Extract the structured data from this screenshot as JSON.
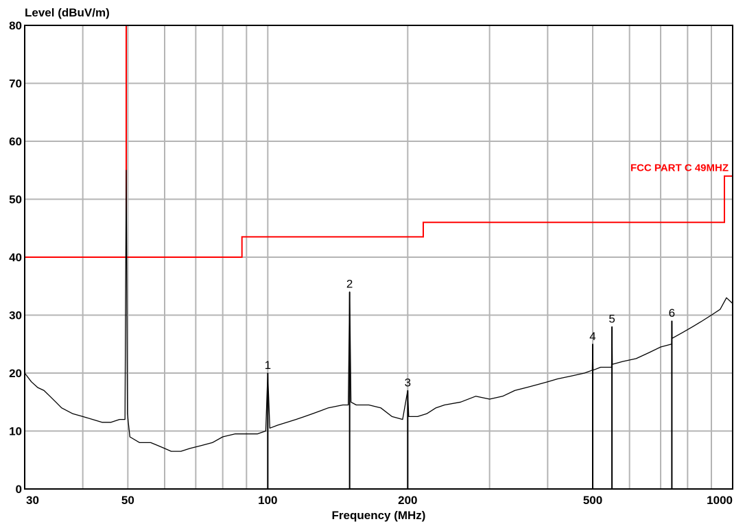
{
  "colors": {
    "background": "#ffffff",
    "grid": "#b4b4b4",
    "trace": "#000000",
    "limit": "#ff0000",
    "frame": "#000000"
  },
  "chart_data": {
    "type": "line",
    "title": "",
    "xlabel": "Frequency (MHz)",
    "ylabel": "Level (dBuV/m)",
    "x_scale": "log",
    "xlim": [
      30,
      1000
    ],
    "ylim": [
      0,
      80
    ],
    "grid": true,
    "x_tick_labels": [
      30,
      50,
      100,
      200,
      500,
      1000
    ],
    "x_grid": [
      30,
      40,
      50,
      60,
      70,
      80,
      90,
      100,
      200,
      300,
      400,
      500,
      600,
      700,
      800,
      900,
      1000
    ],
    "y_ticks": [
      0,
      10,
      20,
      30,
      40,
      50,
      60,
      70,
      80
    ],
    "limit_line": {
      "name": "FCC PART C 49MHZ",
      "points": [
        [
          30,
          40
        ],
        [
          49.6,
          40
        ],
        [
          49.6,
          80
        ],
        [
          49.6,
          40
        ],
        [
          88,
          40
        ],
        [
          88,
          43.5
        ],
        [
          216,
          43.5
        ],
        [
          216,
          46
        ],
        [
          960,
          46
        ],
        [
          960,
          54
        ],
        [
          1000,
          54
        ]
      ]
    },
    "series": [
      {
        "values": [
          [
            30,
            20
          ],
          [
            31,
            18.5
          ],
          [
            32,
            17.5
          ],
          [
            33,
            17
          ],
          [
            34,
            16
          ],
          [
            35,
            15
          ],
          [
            36,
            14
          ],
          [
            38,
            13
          ],
          [
            40,
            12.5
          ],
          [
            42,
            12
          ],
          [
            44,
            11.5
          ],
          [
            46,
            11.5
          ],
          [
            48,
            12
          ],
          [
            49.3,
            12
          ],
          [
            49.6,
            55
          ],
          [
            49.9,
            13
          ],
          [
            50.5,
            9
          ],
          [
            53,
            8
          ],
          [
            56,
            8
          ],
          [
            58,
            7.5
          ],
          [
            60,
            7
          ],
          [
            62,
            6.5
          ],
          [
            65,
            6.5
          ],
          [
            68,
            7
          ],
          [
            72,
            7.5
          ],
          [
            76,
            8
          ],
          [
            80,
            9
          ],
          [
            85,
            9.5
          ],
          [
            90,
            9.5
          ],
          [
            95,
            9.5
          ],
          [
            99,
            10
          ],
          [
            100,
            20
          ],
          [
            101,
            10.5
          ],
          [
            105,
            11
          ],
          [
            110,
            11.5
          ],
          [
            115,
            12
          ],
          [
            120,
            12.5
          ],
          [
            125,
            13
          ],
          [
            130,
            13.5
          ],
          [
            135,
            14
          ],
          [
            145,
            14.5
          ],
          [
            149,
            14.5
          ],
          [
            150,
            34
          ],
          [
            151,
            15
          ],
          [
            155,
            14.5
          ],
          [
            165,
            14.5
          ],
          [
            175,
            14
          ],
          [
            185,
            12.5
          ],
          [
            195,
            12
          ],
          [
            200,
            17
          ],
          [
            201,
            12.5
          ],
          [
            210,
            12.5
          ],
          [
            220,
            13
          ],
          [
            230,
            14
          ],
          [
            240,
            14.5
          ],
          [
            260,
            15
          ],
          [
            280,
            16
          ],
          [
            300,
            15.5
          ],
          [
            320,
            16
          ],
          [
            340,
            17
          ],
          [
            360,
            17.5
          ],
          [
            380,
            18
          ],
          [
            400,
            18.5
          ],
          [
            420,
            19
          ],
          [
            450,
            19.5
          ],
          [
            480,
            20
          ],
          [
            499,
            20.5
          ],
          [
            500,
            25
          ],
          [
            501,
            20.5
          ],
          [
            520,
            21
          ],
          [
            549,
            21
          ],
          [
            550,
            28
          ],
          [
            551,
            21.5
          ],
          [
            580,
            22
          ],
          [
            620,
            22.5
          ],
          [
            660,
            23.5
          ],
          [
            700,
            24.5
          ],
          [
            739,
            25
          ],
          [
            740,
            29
          ],
          [
            741,
            26
          ],
          [
            780,
            27
          ],
          [
            820,
            28
          ],
          [
            860,
            29
          ],
          [
            900,
            30
          ],
          [
            940,
            31
          ],
          [
            970,
            33
          ],
          [
            1000,
            32
          ]
        ]
      }
    ],
    "markers": [
      {
        "label": "1",
        "x": 100,
        "y": 20
      },
      {
        "label": "2",
        "x": 150,
        "y": 34
      },
      {
        "label": "3",
        "x": 200,
        "y": 17
      },
      {
        "label": "4",
        "x": 500,
        "y": 25
      },
      {
        "label": "5",
        "x": 550,
        "y": 28
      },
      {
        "label": "6",
        "x": 740,
        "y": 29
      }
    ]
  }
}
